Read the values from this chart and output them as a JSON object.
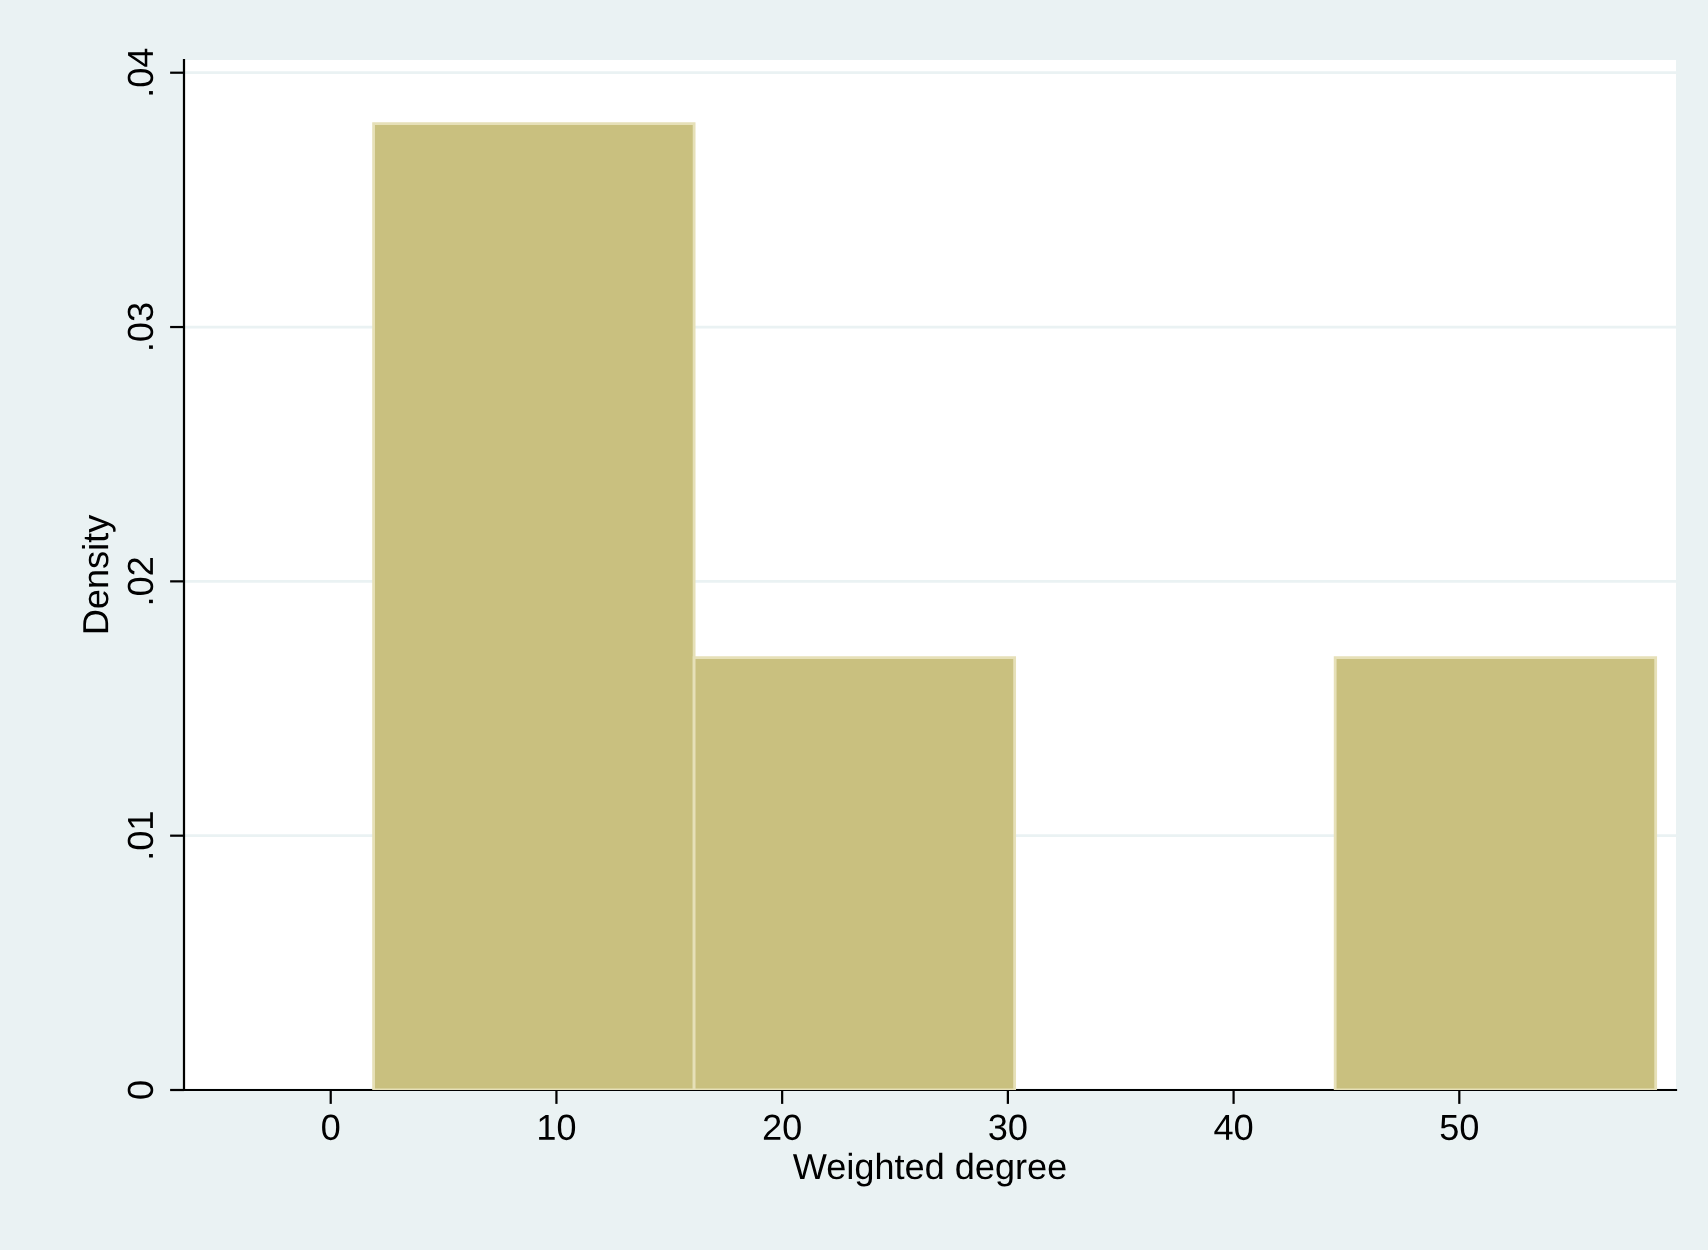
{
  "chart_data": {
    "type": "histogram",
    "xlabel": "Weighted degree",
    "ylabel": "Density",
    "bins": [
      1.9,
      16.1,
      30.3,
      44.5,
      58.7
    ],
    "values": [
      0.038,
      0.017,
      0,
      0.017
    ],
    "color": "#c9c07f",
    "xlim": [
      -6.5,
      59.6
    ],
    "ylim": [
      0,
      0.0405
    ],
    "xticks": [
      0,
      10,
      20,
      30,
      40,
      50
    ],
    "yticks": [
      {
        "value": 0,
        "label": "0"
      },
      {
        "value": 0.01,
        "label": ".01"
      },
      {
        "value": 0.02,
        "label": ".02"
      },
      {
        "value": 0.03,
        "label": ".03"
      },
      {
        "value": 0.04,
        "label": ".04"
      }
    ],
    "grid": "y"
  }
}
